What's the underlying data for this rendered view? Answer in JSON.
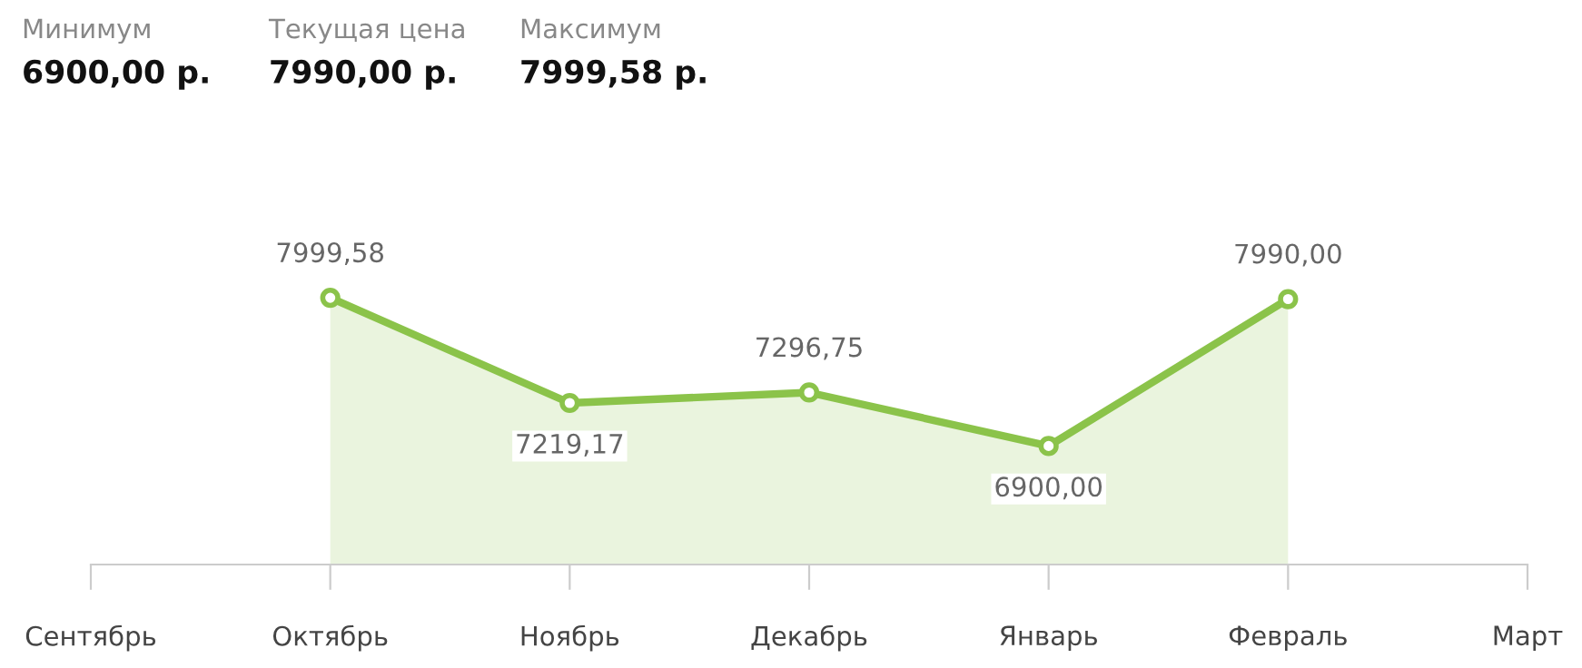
{
  "chart_data": {
    "type": "area",
    "categories": [
      "Сентябрь",
      "Октябрь",
      "Ноябрь",
      "Декабрь",
      "Январь",
      "Февраль",
      "Март"
    ],
    "series": [
      {
        "color": "#8bc34a",
        "values": [
          null,
          7999.58,
          7219.17,
          7296.75,
          6900.0,
          7990.0,
          null
        ],
        "value_labels": [
          null,
          "7999,58",
          "7219,17",
          "7296,75",
          "6900,00",
          "7990,00",
          null
        ]
      }
    ],
    "marker": "circle",
    "line_style": "solid",
    "grid": false,
    "annotations": [
      "Минимум",
      "6900,00 р.",
      "Текущая цена",
      "7990,00 р.",
      "Максимум",
      "7999,58 р."
    ]
  }
}
